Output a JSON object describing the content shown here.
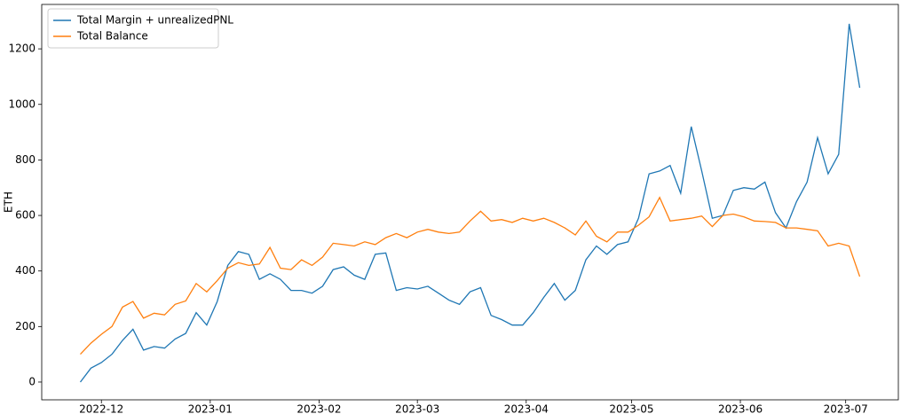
{
  "chart_data": {
    "type": "line",
    "ylabel": "ETH",
    "legend": "upper left",
    "x": [
      0,
      3,
      6,
      9,
      12,
      15,
      18,
      21,
      24,
      27,
      30,
      33,
      36,
      39,
      42,
      45,
      48,
      51,
      54,
      57,
      60,
      63,
      66,
      69,
      72,
      75,
      78,
      81,
      84,
      87,
      90,
      93,
      96,
      99,
      102,
      105,
      108,
      111,
      114,
      117,
      120,
      123,
      126,
      129,
      132,
      135,
      138,
      141,
      144,
      147,
      150,
      153,
      156,
      159,
      162,
      165,
      168,
      171,
      174,
      177,
      180,
      183,
      186,
      189,
      192,
      195,
      198,
      201,
      204,
      207,
      210,
      213,
      216,
      219,
      222
    ],
    "xlim": [
      -11,
      233
    ],
    "xticks": [
      {
        "value": 6,
        "label": "2022-12"
      },
      {
        "value": 37,
        "label": "2023-01"
      },
      {
        "value": 68,
        "label": "2023-02"
      },
      {
        "value": 96,
        "label": "2023-03"
      },
      {
        "value": 127,
        "label": "2023-04"
      },
      {
        "value": 157,
        "label": "2023-05"
      },
      {
        "value": 188,
        "label": "2023-06"
      },
      {
        "value": 218,
        "label": "2023-07"
      }
    ],
    "ylim": [
      -64,
      1360
    ],
    "yticks": [
      0,
      200,
      400,
      600,
      800,
      1000,
      1200
    ],
    "series": [
      {
        "name": "Total Margin + unrealizedPNL",
        "color": "#1f77b4",
        "values": [
          0,
          50,
          70,
          100,
          150,
          190,
          115,
          128,
          122,
          155,
          175,
          250,
          205,
          290,
          420,
          470,
          460,
          370,
          390,
          370,
          330,
          330,
          320,
          345,
          405,
          415,
          385,
          370,
          460,
          465,
          330,
          340,
          335,
          345,
          320,
          295,
          280,
          325,
          340,
          240,
          225,
          205,
          205,
          250,
          305,
          355,
          295,
          330,
          440,
          490,
          460,
          495,
          505,
          590,
          750,
          760,
          780,
          680,
          920,
          760,
          590,
          600,
          690,
          700,
          695,
          720,
          610,
          555,
          650,
          720,
          880,
          750,
          820,
          1290,
          1060
        ]
      },
      {
        "name": "Total Balance",
        "color": "#ff7f0e",
        "values": [
          100,
          140,
          172,
          200,
          270,
          290,
          230,
          248,
          242,
          280,
          292,
          355,
          325,
          365,
          410,
          430,
          420,
          425,
          485,
          410,
          405,
          440,
          420,
          450,
          500,
          495,
          490,
          505,
          495,
          520,
          535,
          520,
          540,
          550,
          540,
          535,
          540,
          580,
          615,
          580,
          585,
          575,
          590,
          580,
          590,
          575,
          555,
          530,
          580,
          525,
          505,
          540,
          540,
          565,
          595,
          665,
          580,
          585,
          590,
          598,
          560,
          600,
          605,
          595,
          580,
          578,
          575,
          555,
          555,
          550,
          545,
          490,
          500,
          490,
          380
        ]
      }
    ]
  }
}
